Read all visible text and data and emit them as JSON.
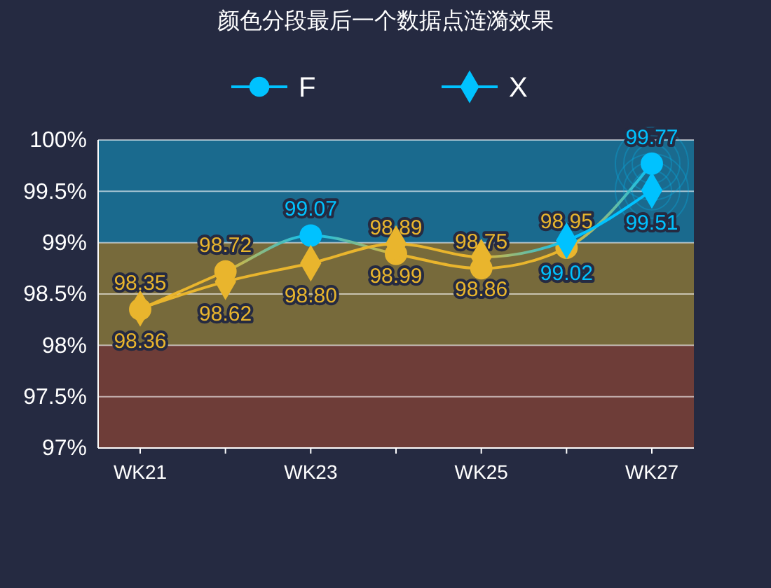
{
  "chart_data": {
    "type": "line",
    "title": "颜色分段最后一个数据点涟漪效果",
    "categories": [
      "WK21",
      null,
      "WK23",
      null,
      "WK25",
      null,
      "WK27"
    ],
    "series": [
      {
        "name": "F",
        "marker": "circle",
        "color": "#00c2ff",
        "colors": [
          "#e9b52d",
          "#e9b52d",
          "#00c2ff",
          "#e9b52d",
          "#e9b52d",
          "#e9b52d",
          "#00c2ff"
        ],
        "values": [
          98.35,
          98.72,
          99.07,
          98.89,
          98.75,
          98.95,
          99.77
        ],
        "value_labels": [
          "98.35",
          "98.72",
          "99.07",
          "98.89",
          "98.75",
          "98.95",
          "99.77"
        ]
      },
      {
        "name": "X",
        "marker": "diamond",
        "color": "#00c2ff",
        "colors": [
          "#e9b52d",
          "#e9b52d",
          "#e9b52d",
          "#e9b52d",
          "#e9b52d",
          "#00c2ff",
          "#00c2ff"
        ],
        "values": [
          98.36,
          98.62,
          98.8,
          98.99,
          98.86,
          99.02,
          99.51
        ],
        "value_labels": [
          "98.36",
          "98.62",
          "98.80",
          "98.99",
          "98.86",
          "99.02",
          "99.51"
        ]
      }
    ],
    "ylim": [
      97,
      100
    ],
    "yticks": [
      {
        "value": 97,
        "label": "97%"
      },
      {
        "value": 97.5,
        "label": "97.5%"
      },
      {
        "value": 98,
        "label": "98%"
      },
      {
        "value": 98.5,
        "label": "98.5%"
      },
      {
        "value": 99,
        "label": "99%"
      },
      {
        "value": 99.5,
        "label": "99.5%"
      },
      {
        "value": 100,
        "label": "100%"
      }
    ],
    "bands": [
      {
        "axis": "y",
        "from": 97,
        "to": 98,
        "color": "#6e3d38"
      },
      {
        "axis": "y",
        "from": 98,
        "to": 99,
        "color": "#776a3b"
      },
      {
        "axis": "y",
        "from": 99,
        "to": 100,
        "color": "#1a6a8e"
      }
    ],
    "grid": "y",
    "legend": "top"
  }
}
